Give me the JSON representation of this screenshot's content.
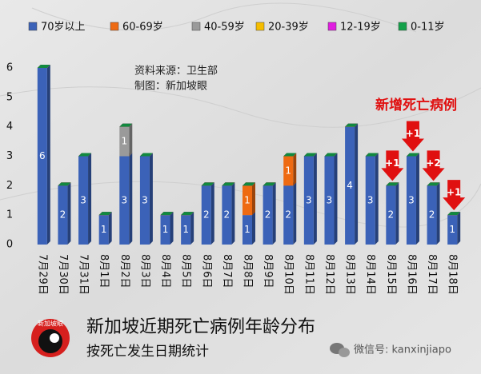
{
  "chart_data": {
    "type": "bar",
    "stacked": true,
    "title": "新加坡近期死亡病例年龄分布",
    "subtitle": "按死亡发生日期统计",
    "source": "资料来源：卫生部",
    "credit": "制图：新加坡眼",
    "logo": "新加坡眼",
    "watermark": "微信号: kanxinjiapo",
    "annotation_title": "新增死亡病例",
    "annotations": [
      {
        "category": "8月15日",
        "text": "+1"
      },
      {
        "category": "8月16日",
        "text": "+1"
      },
      {
        "category": "8月17日",
        "text": "+2"
      },
      {
        "category": "8月18日",
        "text": "+1"
      }
    ],
    "categories": [
      "7月29日",
      "7月30日",
      "7月31日",
      "8月1日",
      "8月2日",
      "8月3日",
      "8月4日",
      "8月5日",
      "8月6日",
      "8月7日",
      "8月8日",
      "8月9日",
      "8月10日",
      "8月11日",
      "8月12日",
      "8月13日",
      "8月14日",
      "8月15日",
      "8月16日",
      "8月17日",
      "8月18日"
    ],
    "series": [
      {
        "name": "70岁以上",
        "color": "#3b62b8",
        "values": [
          6,
          2,
          3,
          1,
          3,
          3,
          1,
          1,
          2,
          2,
          1,
          2,
          2,
          3,
          3,
          4,
          3,
          2,
          3,
          2,
          1
        ]
      },
      {
        "name": "60-69岁",
        "color": "#ee6a12",
        "values": [
          0,
          0,
          0,
          0,
          0,
          0,
          0,
          0,
          0,
          0,
          1,
          0,
          1,
          0,
          0,
          0,
          0,
          0,
          0,
          0,
          0
        ]
      },
      {
        "name": "40-59岁",
        "color": "#9a9a9a",
        "values": [
          0,
          0,
          0,
          0,
          1,
          0,
          0,
          0,
          0,
          0,
          0,
          0,
          0,
          0,
          0,
          0,
          0,
          0,
          0,
          0,
          0
        ]
      },
      {
        "name": "20-39岁",
        "color": "#f5bd00",
        "values": [
          0,
          0,
          0,
          0,
          0,
          0,
          0,
          0,
          0,
          0,
          0,
          0,
          0,
          0,
          0,
          0,
          0,
          0,
          0,
          0,
          0
        ]
      },
      {
        "name": "12-19岁",
        "color": "#e01ee0",
        "values": [
          0,
          0,
          0,
          0,
          0,
          0,
          0,
          0,
          0,
          0,
          0,
          0,
          0,
          0,
          0,
          0,
          0,
          0,
          0,
          0,
          0
        ]
      },
      {
        "name": "0-11岁",
        "color": "#14a14a",
        "values": [
          0,
          0,
          0,
          0,
          0,
          0,
          0,
          0,
          0,
          0,
          0,
          0,
          0,
          0,
          0,
          0,
          0,
          0,
          0,
          0,
          0
        ]
      }
    ],
    "ylim": [
      0,
      6
    ],
    "yticks": [
      0,
      1,
      2,
      3,
      4,
      5,
      6
    ],
    "legend": "top"
  }
}
